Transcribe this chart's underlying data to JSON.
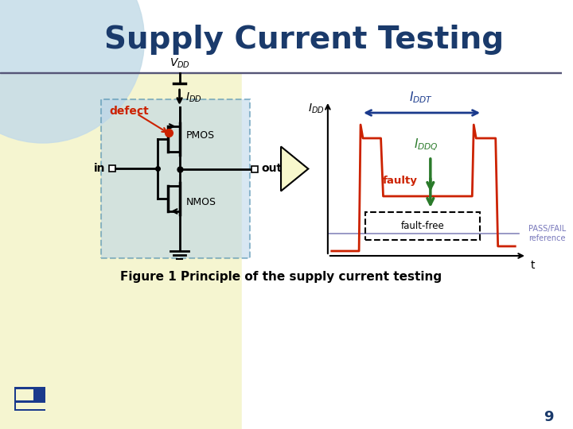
{
  "title": "Supply Current Testing",
  "title_color": "#1a3a6b",
  "figure_caption": "Figure 1 Principle of the supply current testing",
  "page_number": "9",
  "defect_color": "#cc2200",
  "faulty_curve_color": "#cc2200",
  "iddt_arrow_color": "#1a3a8c",
  "iddq_arrow_color": "#2a7a2a",
  "pass_fail_color": "#7777bb",
  "faulty_label_color": "#cc2200",
  "circle_color": "#c8dce8",
  "box_color": "#b8d4e8",
  "box_edge_color": "#4488aa",
  "buf_fill": "#f8f8cc",
  "bg_left_color": "#f5f5d5",
  "bg_right_color": "#ffffff",
  "line_under_title_color": "#333333"
}
